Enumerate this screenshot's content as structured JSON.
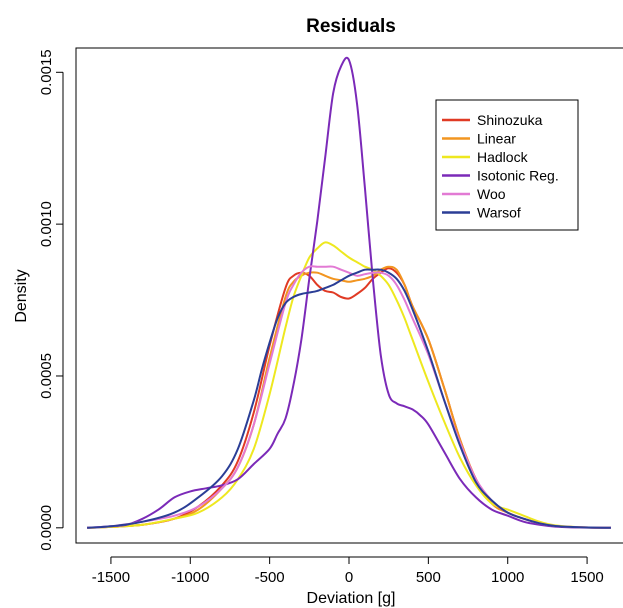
{
  "chart_data": {
    "type": "line",
    "title": "Residuals",
    "xlabel": "Deviation [g]",
    "ylabel": "Density",
    "xlim": [
      -1720,
      1720
    ],
    "ylim": [
      -5e-05,
      0.00158
    ],
    "x_ticks": [
      -1500,
      -1000,
      -500,
      0,
      500,
      1000,
      1500
    ],
    "x_tick_labels": [
      "-1500",
      "-1000",
      "-500",
      "0",
      "500",
      "1000",
      "1500"
    ],
    "y_ticks": [
      0.0,
      0.0005,
      0.001,
      0.0015
    ],
    "y_tick_labels": [
      "0.0000",
      "0.0005",
      "0.0010",
      "0.0015"
    ],
    "legend_position": "top-right",
    "grid": false,
    "series": [
      {
        "name": "Shinozuka",
        "color": "#e03a24",
        "x": [
          -1650,
          -1500,
          -1300,
          -1100,
          -950,
          -800,
          -700,
          -600,
          -500,
          -400,
          -350,
          -300,
          -250,
          -200,
          -150,
          -100,
          -50,
          0,
          50,
          100,
          150,
          200,
          250,
          300,
          350,
          400,
          500,
          600,
          700,
          800,
          900,
          1000,
          1100,
          1200,
          1300,
          1450,
          1650
        ],
        "y": [
          0,
          3e-06,
          1e-05,
          3e-05,
          7e-05,
          0.00014,
          0.00022,
          0.00038,
          0.0006,
          0.00079,
          0.00083,
          0.00084,
          0.00083,
          0.0008,
          0.00078,
          0.000775,
          0.00076,
          0.000755,
          0.00077,
          0.00079,
          0.00082,
          0.00084,
          0.000855,
          0.00084,
          0.0008,
          0.00073,
          0.00062,
          0.00046,
          0.00029,
          0.00016,
          8e-05,
          5e-05,
          3e-05,
          1.5e-05,
          6e-06,
          2e-06,
          0
        ]
      },
      {
        "name": "Linear",
        "color": "#f29520",
        "x": [
          -1650,
          -1500,
          -1300,
          -1100,
          -950,
          -800,
          -700,
          -600,
          -500,
          -400,
          -350,
          -300,
          -250,
          -200,
          -150,
          -100,
          -50,
          0,
          50,
          100,
          150,
          200,
          250,
          300,
          350,
          400,
          500,
          600,
          700,
          800,
          900,
          1000,
          1100,
          1200,
          1300,
          1450,
          1650
        ],
        "y": [
          0,
          3e-06,
          1e-05,
          3e-05,
          6e-05,
          0.00013,
          0.0002,
          0.00034,
          0.00056,
          0.00076,
          0.00081,
          0.00083,
          0.00084,
          0.00084,
          0.00083,
          0.00082,
          0.000815,
          0.00081,
          0.000815,
          0.00082,
          0.00083,
          0.00085,
          0.00086,
          0.00085,
          0.0008,
          0.00073,
          0.00062,
          0.00046,
          0.00029,
          0.00016,
          8e-05,
          5e-05,
          3e-05,
          1.5e-05,
          6e-06,
          2e-06,
          0
        ]
      },
      {
        "name": "Hadlock",
        "color": "#eee81f",
        "x": [
          -1650,
          -1500,
          -1300,
          -1100,
          -950,
          -800,
          -700,
          -600,
          -500,
          -400,
          -350,
          -300,
          -250,
          -200,
          -150,
          -100,
          -50,
          0,
          50,
          100,
          150,
          200,
          250,
          300,
          350,
          400,
          500,
          600,
          700,
          800,
          900,
          1000,
          1100,
          1200,
          1300,
          1450,
          1650
        ],
        "y": [
          0,
          3e-06,
          1e-05,
          3e-05,
          5e-05,
          0.0001,
          0.00016,
          0.00026,
          0.00044,
          0.00066,
          0.00076,
          0.00083,
          0.00089,
          0.00092,
          0.00094,
          0.00093,
          0.00091,
          0.00089,
          0.000875,
          0.00086,
          0.00085,
          0.00083,
          0.0008,
          0.00075,
          0.00069,
          0.00062,
          0.00048,
          0.00035,
          0.00023,
          0.00014,
          8e-05,
          6e-05,
          4e-05,
          2e-05,
          8e-06,
          2e-06,
          0
        ]
      },
      {
        "name": "Isotonic Reg.",
        "color": "#7b2ab8",
        "x": [
          -1650,
          -1500,
          -1400,
          -1300,
          -1200,
          -1100,
          -1000,
          -900,
          -800,
          -700,
          -600,
          -500,
          -450,
          -400,
          -350,
          -300,
          -250,
          -200,
          -150,
          -100,
          -50,
          0,
          50,
          100,
          150,
          200,
          250,
          300,
          350,
          400,
          450,
          500,
          600,
          700,
          800,
          900,
          1000,
          1100,
          1200,
          1300,
          1450,
          1650
        ],
        "y": [
          0,
          5e-06,
          1e-05,
          3e-05,
          6e-05,
          0.0001,
          0.00012,
          0.00013,
          0.00014,
          0.00016,
          0.00021,
          0.00026,
          0.00031,
          0.00036,
          0.00047,
          0.00062,
          0.00082,
          0.00101,
          0.00122,
          0.00143,
          0.00152,
          0.00154,
          0.0014,
          0.00112,
          0.00082,
          0.00057,
          0.00044,
          0.00041,
          0.0004,
          0.00039,
          0.00037,
          0.00034,
          0.00025,
          0.00016,
          0.0001,
          6e-05,
          4e-05,
          2e-05,
          1e-05,
          4e-06,
          1e-06,
          0
        ]
      },
      {
        "name": "Woo",
        "color": "#e27ad4",
        "x": [
          -1650,
          -1500,
          -1300,
          -1100,
          -950,
          -800,
          -700,
          -600,
          -500,
          -400,
          -350,
          -300,
          -250,
          -200,
          -150,
          -100,
          -50,
          0,
          50,
          100,
          150,
          200,
          250,
          300,
          350,
          400,
          500,
          600,
          700,
          800,
          900,
          1000,
          1100,
          1200,
          1300,
          1450,
          1650
        ],
        "y": [
          0,
          5e-06,
          2e-05,
          4e-05,
          7e-05,
          0.00013,
          0.0002,
          0.00034,
          0.00054,
          0.00074,
          0.0008,
          0.00084,
          0.00086,
          0.00086,
          0.00086,
          0.00086,
          0.00085,
          0.00084,
          0.00083,
          0.000835,
          0.00084,
          0.00084,
          0.00083,
          0.0008,
          0.00075,
          0.00069,
          0.00057,
          0.00042,
          0.00028,
          0.00016,
          9e-05,
          5e-05,
          3e-05,
          1.5e-05,
          6e-06,
          2e-06,
          0
        ]
      },
      {
        "name": "Warsof",
        "color": "#2b3e96",
        "x": [
          -1650,
          -1500,
          -1300,
          -1100,
          -950,
          -800,
          -700,
          -600,
          -550,
          -500,
          -450,
          -400,
          -350,
          -300,
          -250,
          -200,
          -150,
          -100,
          -50,
          0,
          50,
          100,
          150,
          200,
          250,
          300,
          350,
          400,
          500,
          600,
          700,
          800,
          900,
          1000,
          1100,
          1200,
          1300,
          1450,
          1650
        ],
        "y": [
          0,
          5e-06,
          2e-05,
          5e-05,
          0.0001,
          0.00017,
          0.00026,
          0.00042,
          0.00052,
          0.00061,
          0.00069,
          0.00074,
          0.00076,
          0.00077,
          0.000775,
          0.00078,
          0.00079,
          0.0008,
          0.000815,
          0.00083,
          0.00084,
          0.00085,
          0.00085,
          0.00085,
          0.00084,
          0.00082,
          0.00078,
          0.00072,
          0.00058,
          0.00042,
          0.00027,
          0.00015,
          9e-05,
          5e-05,
          3e-05,
          1.5e-05,
          6e-06,
          2e-06,
          0
        ]
      }
    ]
  }
}
